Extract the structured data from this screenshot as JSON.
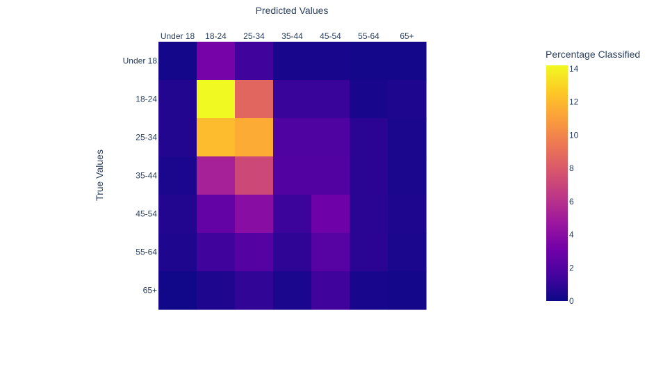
{
  "chart_data": {
    "type": "heatmap",
    "xlabel": "Predicted Values",
    "ylabel": "True Values",
    "x_categories": [
      "Under 18",
      "18-24",
      "25-34",
      "35-44",
      "45-54",
      "55-64",
      "65+"
    ],
    "y_categories": [
      "Under 18",
      "18-24",
      "25-34",
      "35-44",
      "45-54",
      "55-64",
      "65+"
    ],
    "values": [
      [
        0.2,
        3.3,
        1.4,
        0.3,
        0.3,
        0.2,
        0.2
      ],
      [
        0.6,
        14.2,
        8.6,
        1.2,
        1.2,
        0.3,
        0.5
      ],
      [
        0.6,
        12.1,
        11.5,
        1.9,
        1.9,
        0.8,
        0.4
      ],
      [
        0.4,
        5.2,
        7.2,
        2.0,
        2.0,
        0.8,
        0.4
      ],
      [
        0.6,
        2.6,
        4.0,
        1.3,
        3.0,
        0.8,
        0.5
      ],
      [
        0.5,
        1.4,
        2.1,
        0.9,
        2.2,
        0.8,
        0.4
      ],
      [
        0.1,
        0.5,
        1.0,
        0.4,
        1.4,
        0.3,
        0.2
      ]
    ],
    "colorbar": {
      "title": "Percentage Classified",
      "min": 0,
      "max": 14.2,
      "tick_values": [
        0,
        2,
        4,
        6,
        8,
        10,
        12,
        14
      ],
      "tick_labels": [
        "0",
        "2",
        "4",
        "6",
        "8",
        "10",
        "12",
        "14"
      ]
    },
    "colorscale": [
      "#0d0887",
      "#46039f",
      "#7201a8",
      "#9c179e",
      "#bd3786",
      "#d8576b",
      "#ed7953",
      "#fb9f3a",
      "#fdca26",
      "#f0f921"
    ]
  }
}
